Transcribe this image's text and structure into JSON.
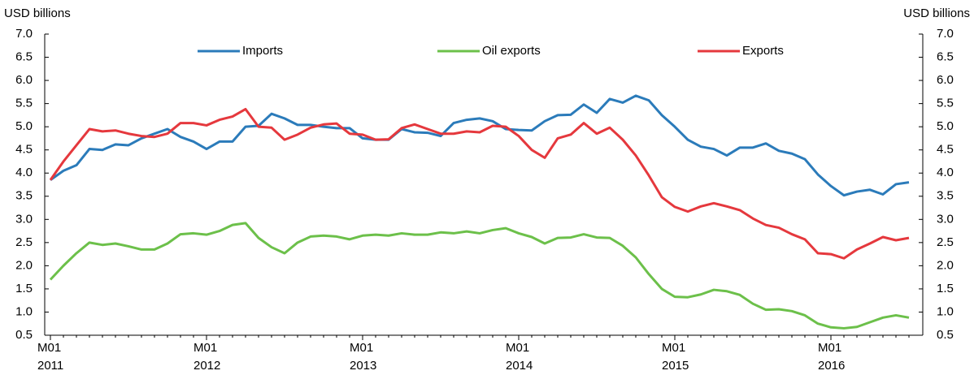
{
  "chart_data": {
    "type": "line",
    "y_label_left": "USD billions",
    "y_label_right": "USD billions",
    "categories": [
      "M01\n2011",
      null,
      null,
      null,
      null,
      null,
      null,
      null,
      null,
      null,
      null,
      null,
      "M01\n2012",
      null,
      null,
      null,
      null,
      null,
      null,
      null,
      null,
      null,
      null,
      null,
      "M01\n2013",
      null,
      null,
      null,
      null,
      null,
      null,
      null,
      null,
      null,
      null,
      null,
      "M01\n2014",
      null,
      null,
      null,
      null,
      null,
      null,
      null,
      null,
      null,
      null,
      null,
      "M01\n2015",
      null,
      null,
      null,
      null,
      null,
      null,
      null,
      null,
      null,
      null,
      null,
      "M01\n2016",
      null,
      null,
      null,
      null,
      null,
      null
    ],
    "series": [
      {
        "name": "Imports",
        "color": "#2b7bba",
        "values": [
          3.85,
          4.05,
          4.17,
          4.52,
          4.5,
          4.62,
          4.6,
          4.75,
          4.85,
          4.95,
          4.78,
          4.68,
          4.52,
          4.68,
          4.68,
          5.0,
          5.02,
          5.28,
          5.18,
          5.04,
          5.04,
          5.0,
          4.97,
          4.97,
          4.75,
          4.72,
          4.72,
          4.95,
          4.88,
          4.87,
          4.8,
          5.08,
          5.15,
          5.18,
          5.12,
          4.95,
          4.93,
          4.92,
          5.12,
          5.25,
          5.26,
          5.48,
          5.3,
          5.6,
          5.52,
          5.67,
          5.57,
          5.25,
          5.0,
          4.72,
          4.57,
          4.52,
          4.38,
          4.55,
          4.55,
          4.64,
          4.48,
          4.42,
          4.3,
          3.97,
          3.72,
          3.52,
          3.6,
          3.64,
          3.54,
          3.76,
          3.8
        ]
      },
      {
        "name": "Oil exports",
        "color": "#6cc04a",
        "values": [
          1.7,
          2.0,
          2.27,
          2.5,
          2.45,
          2.48,
          2.42,
          2.35,
          2.35,
          2.48,
          2.68,
          2.7,
          2.67,
          2.75,
          2.88,
          2.92,
          2.6,
          2.4,
          2.27,
          2.5,
          2.63,
          2.65,
          2.63,
          2.57,
          2.65,
          2.67,
          2.65,
          2.7,
          2.67,
          2.67,
          2.72,
          2.7,
          2.74,
          2.7,
          2.77,
          2.81,
          2.7,
          2.62,
          2.48,
          2.6,
          2.61,
          2.68,
          2.61,
          2.6,
          2.43,
          2.18,
          1.82,
          1.5,
          1.33,
          1.32,
          1.38,
          1.48,
          1.45,
          1.37,
          1.18,
          1.05,
          1.06,
          1.02,
          0.93,
          0.75,
          0.67,
          0.65,
          0.68,
          0.78,
          0.88,
          0.93,
          0.88
        ]
      },
      {
        "name": "Exports",
        "color": "#e5383d",
        "values": [
          3.85,
          4.25,
          4.6,
          4.95,
          4.9,
          4.92,
          4.85,
          4.8,
          4.78,
          4.85,
          5.08,
          5.08,
          5.03,
          5.15,
          5.22,
          5.38,
          5.0,
          4.98,
          4.72,
          4.83,
          4.98,
          5.05,
          5.07,
          4.85,
          4.83,
          4.72,
          4.73,
          4.97,
          5.05,
          4.95,
          4.85,
          4.85,
          4.9,
          4.88,
          5.02,
          5.0,
          4.8,
          4.5,
          4.33,
          4.75,
          4.83,
          5.08,
          4.85,
          4.98,
          4.72,
          4.38,
          3.95,
          3.48,
          3.27,
          3.17,
          3.28,
          3.35,
          3.28,
          3.2,
          3.02,
          2.88,
          2.82,
          2.68,
          2.57,
          2.27,
          2.25,
          2.16,
          2.35,
          2.48,
          2.62,
          2.55,
          2.6
        ]
      }
    ],
    "ylim": [
      0.5,
      7.0
    ],
    "yticks": [
      {
        "value": 0.5,
        "label": "0.5"
      },
      {
        "value": 1,
        "label": "1.0"
      },
      {
        "value": 1.5,
        "label": "1.5"
      },
      {
        "value": 2,
        "label": "2.0"
      },
      {
        "value": 2.5,
        "label": "2.5"
      },
      {
        "value": 3,
        "label": "3.0"
      },
      {
        "value": 3.5,
        "label": "3.5"
      },
      {
        "value": 4,
        "label": "4.0"
      },
      {
        "value": 4.5,
        "label": "4.5"
      },
      {
        "value": 5,
        "label": "5.0"
      },
      {
        "value": 5.5,
        "label": "5.5"
      },
      {
        "value": 6,
        "label": "6.0"
      },
      {
        "value": 6.5,
        "label": "6.5"
      },
      {
        "value": 7,
        "label": "7.0"
      }
    ],
    "grid": false
  }
}
